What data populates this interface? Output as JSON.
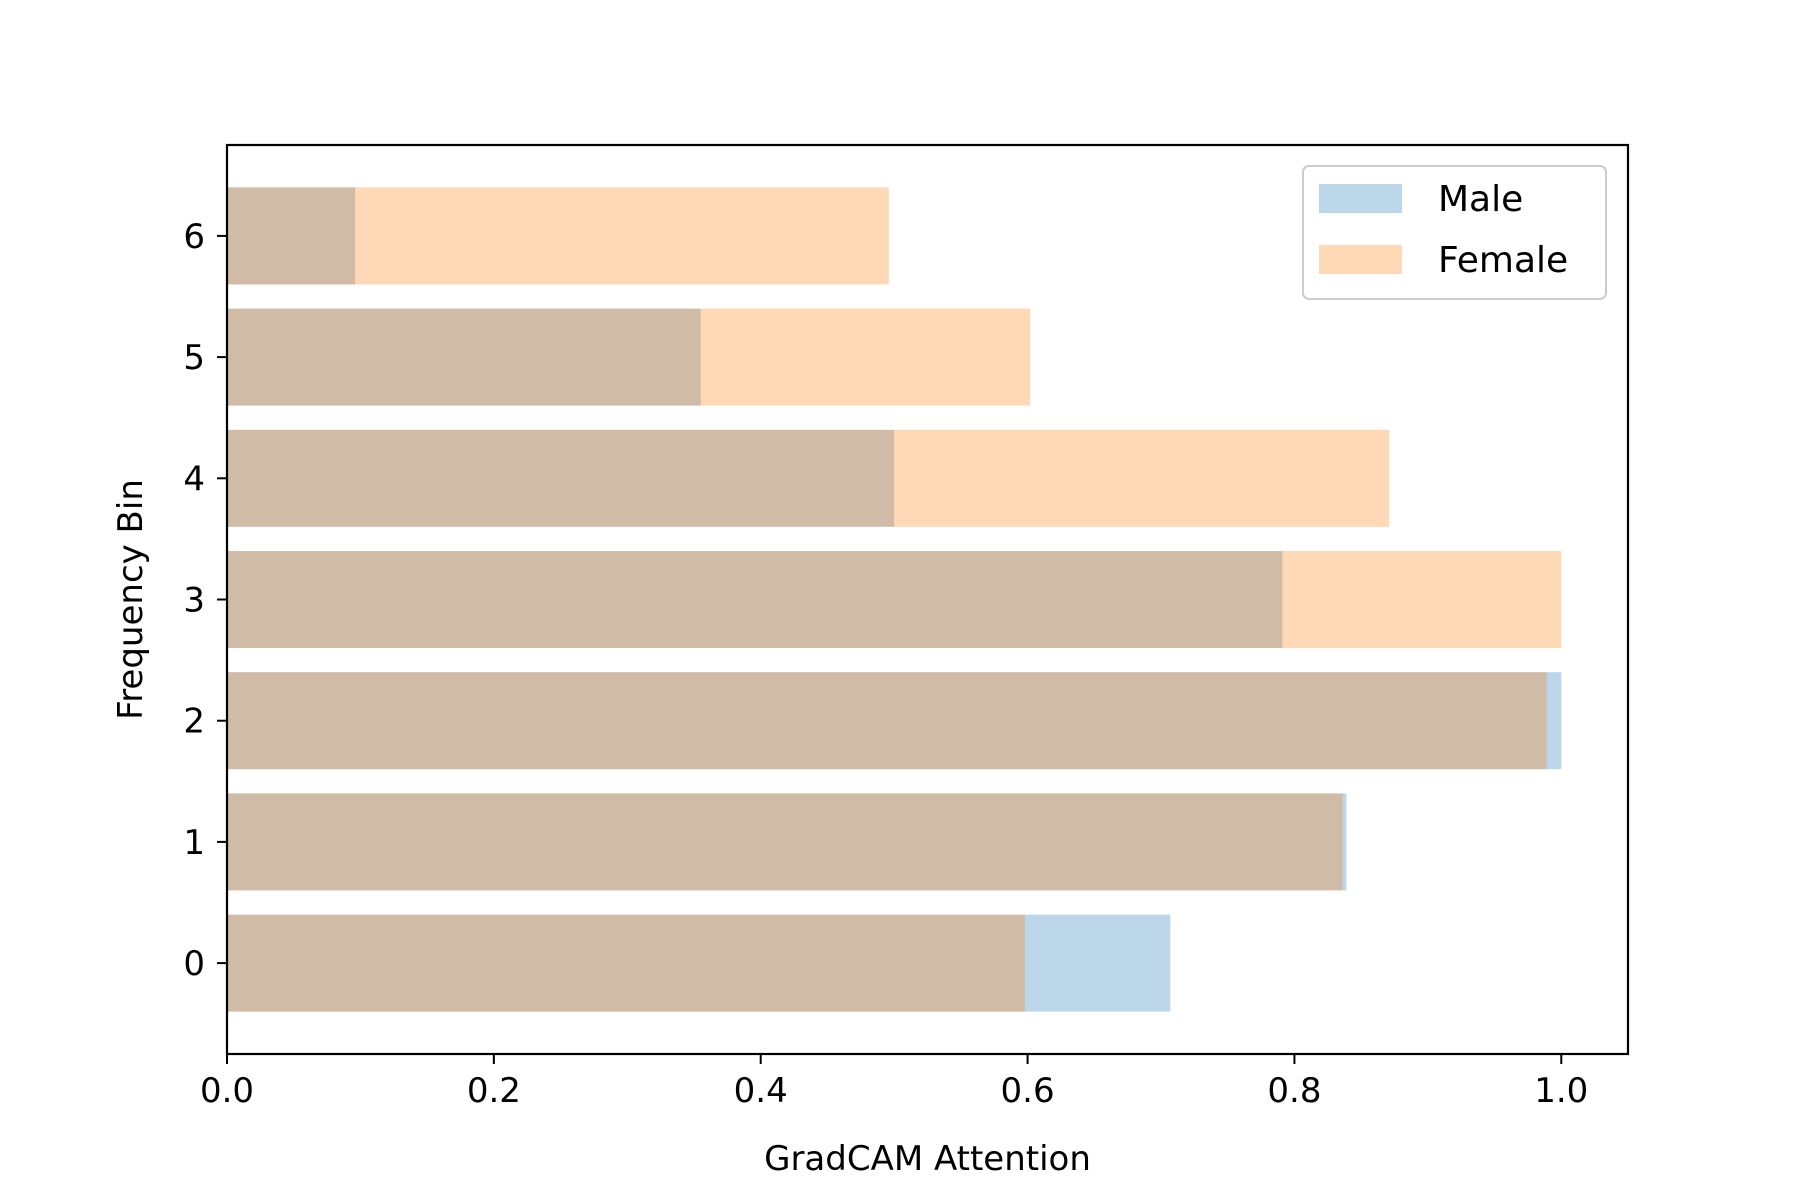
{
  "chart_data": {
    "type": "bar",
    "orientation": "horizontal",
    "overlay": true,
    "bar_opacity": 0.3,
    "categories": [
      "0",
      "1",
      "2",
      "3",
      "4",
      "5",
      "6"
    ],
    "series": [
      {
        "name": "Male",
        "color": "#1f77b4",
        "values": [
          0.707,
          0.839,
          1.0,
          0.791,
          0.5,
          0.355,
          0.096
        ]
      },
      {
        "name": "Female",
        "color": "#ff7f0e",
        "values": [
          0.598,
          0.836,
          0.989,
          1.0,
          0.871,
          0.602,
          0.496
        ]
      }
    ],
    "xlabel": "GradCAM Attention",
    "ylabel": "Frequency Bin",
    "xlim": [
      0,
      1.05
    ],
    "ylim": [
      -0.75,
      6.75
    ],
    "xticks": [
      "0.0",
      "0.2",
      "0.4",
      "0.6",
      "0.8",
      "1.0"
    ],
    "yticks": [
      "0",
      "1",
      "2",
      "3",
      "4",
      "5",
      "6"
    ],
    "grid": false,
    "legend_position": "top-right"
  }
}
